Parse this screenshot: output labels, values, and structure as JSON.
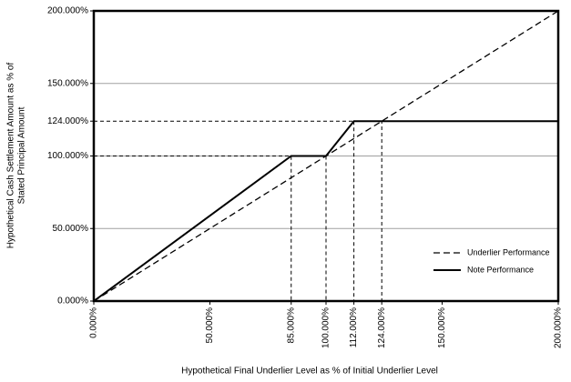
{
  "chart_data": {
    "type": "line",
    "x_label": "Hypothetical Final Underlier Level as % of Initial Underlier Level",
    "y_label": [
      "Hypothetical Cash Settlement Amount as % of",
      "Stated Principal Amount"
    ],
    "xlim": [
      0,
      200
    ],
    "ylim": [
      0,
      200
    ],
    "xticks": [
      {
        "value": 0,
        "label": "0.000%"
      },
      {
        "value": 50,
        "label": "50.000%"
      },
      {
        "value": 85,
        "label": "85.000%"
      },
      {
        "value": 100,
        "label": "100.000%"
      },
      {
        "value": 112,
        "label": "112.000%"
      },
      {
        "value": 124,
        "label": "124.000%"
      },
      {
        "value": 150,
        "label": "150.000%"
      },
      {
        "value": 200,
        "label": "200.000%"
      }
    ],
    "yticks": [
      {
        "value": 0,
        "label": "0.000%"
      },
      {
        "value": 50,
        "label": "50.000%"
      },
      {
        "value": 100,
        "label": "100.000%"
      },
      {
        "value": 124,
        "label": "124.000%"
      },
      {
        "value": 150,
        "label": "150.000%"
      },
      {
        "value": 200,
        "label": "200.000%"
      }
    ],
    "grid_y": [
      50,
      100,
      150
    ],
    "guides": [
      {
        "x": [
          0,
          85,
          85
        ],
        "y": [
          100,
          100,
          0
        ]
      },
      {
        "x": [
          100,
          100
        ],
        "y": [
          100,
          0
        ]
      },
      {
        "x": [
          0,
          124,
          124
        ],
        "y": [
          124,
          124,
          0
        ]
      },
      {
        "x": [
          112,
          112
        ],
        "y": [
          124,
          0
        ]
      }
    ],
    "legend": "lower right",
    "series": [
      {
        "name": "Underlier Performance",
        "color": "#000000",
        "dash": true,
        "x": [
          0,
          200
        ],
        "values": [
          0,
          200
        ]
      },
      {
        "name": "Note Performance",
        "color": "#000000",
        "dash": false,
        "x": [
          0,
          85,
          100,
          112,
          200
        ],
        "values": [
          0,
          100,
          100,
          124,
          124
        ]
      }
    ]
  }
}
